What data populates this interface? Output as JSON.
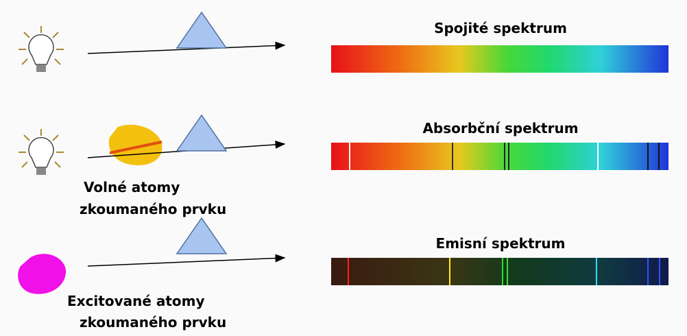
{
  "rows": [
    {
      "title": "Spojité spektrum"
    },
    {
      "title": "Absorbční spektrum",
      "source_label": [
        "Volné atomy",
        "zkoumaného prvku"
      ]
    },
    {
      "title": "Emisní spektrum",
      "source_label": [
        "Excitované atomy",
        "zkoumaného prvku"
      ]
    }
  ]
}
